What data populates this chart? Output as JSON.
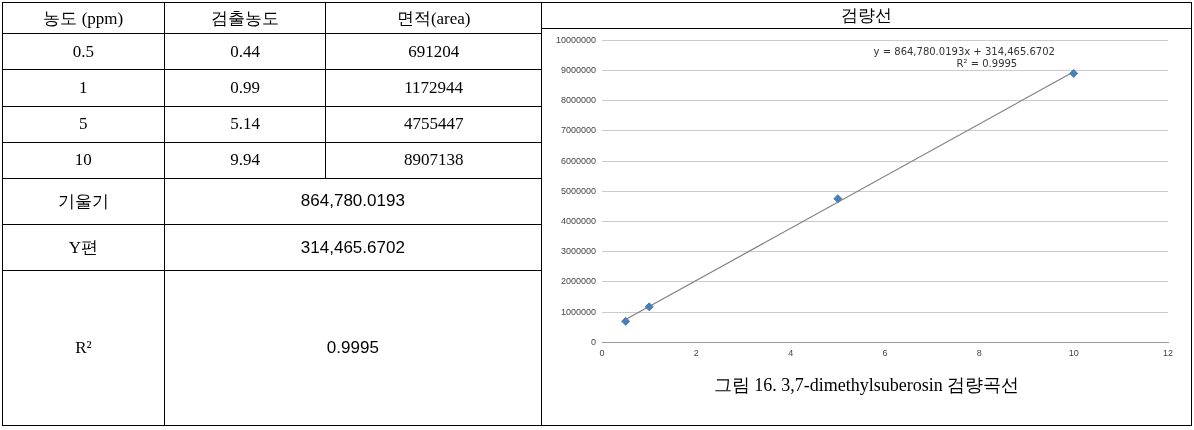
{
  "chart_data": [
    {
      "type": "other",
      "annotations": [
        "농도 (ppm)",
        "검출농도",
        "면적(area)",
        "0.5",
        "0.44",
        "691204",
        "1",
        "0.99",
        "1172944",
        "5",
        "5.14",
        "4755447",
        "10",
        "9.94",
        "8907138",
        "기울기",
        "864,780.0193",
        "Y편",
        "314,465.6702",
        "R²",
        "0.9995"
      ]
    },
    {
      "type": "scatter",
      "title": "검량선",
      "grid": "y",
      "legend": false,
      "xlim": [
        0,
        12
      ],
      "xticks": [
        0,
        2,
        4,
        6,
        8,
        10,
        12
      ],
      "ylim": [
        0,
        10000000
      ],
      "yticks": [
        0,
        1000000,
        2000000,
        3000000,
        4000000,
        5000000,
        6000000,
        7000000,
        8000000,
        9000000,
        10000000
      ],
      "series": [
        {
          "type": "scatter",
          "marker": "diamond",
          "color": "#4a7ebb",
          "x": [
            0.5,
            1,
            5,
            10
          ],
          "values": [
            691204,
            1172944,
            4755447,
            8907138
          ]
        },
        {
          "type": "line",
          "color": "#7f7f7f",
          "x": [
            0.5,
            10
          ],
          "values": [
            750000,
            8960000
          ]
        }
      ],
      "annotations": [
        "y = 864,780.0193x + 314,465.6702",
        "R² = 0.9995",
        "그림 16. 3,7-dimethylsuberosin 검량곡선"
      ]
    }
  ]
}
